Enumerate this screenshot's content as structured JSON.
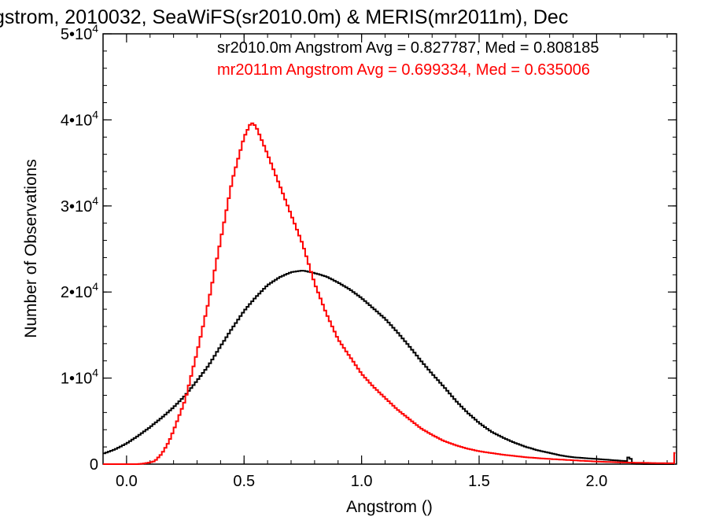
{
  "chart_data": {
    "type": "line",
    "title": "gstrom, 2010032, SeaWiFS(sr2010.0m) & MERIS(mr2011m), Dec",
    "xlabel": "Angstrom ()",
    "ylabel": "Number of Observations",
    "xlim": [
      -0.1,
      2.34
    ],
    "ylim": [
      0,
      50000
    ],
    "grid": false,
    "x_ticks": [
      {
        "value": 0.0,
        "label": "0.0"
      },
      {
        "value": 0.5,
        "label": "0.5"
      },
      {
        "value": 1.0,
        "label": "1.0"
      },
      {
        "value": 1.5,
        "label": "1.5"
      },
      {
        "value": 2.0,
        "label": "2.0"
      }
    ],
    "y_ticks": [
      {
        "value": 0,
        "label": "0",
        "exp": ""
      },
      {
        "value": 10000,
        "label": "1•10",
        "exp": "4"
      },
      {
        "value": 20000,
        "label": "2•10",
        "exp": "4"
      },
      {
        "value": 30000,
        "label": "3•10",
        "exp": "4"
      },
      {
        "value": 40000,
        "label": "4•10",
        "exp": "4"
      },
      {
        "value": 50000,
        "label": "5•10",
        "exp": "4"
      }
    ],
    "annotations": [
      {
        "text": "sr2010.0m Angstrom Avg = 0.827787, Med = 0.808185",
        "color": "#000000"
      },
      {
        "text": "mr2011m Angstrom Avg = 0.699334, Med = 0.635006",
        "color": "#ff0000"
      }
    ],
    "series": [
      {
        "color": "#000000",
        "points": [
          [
            -0.1,
            1200
          ],
          [
            -0.05,
            1700
          ],
          [
            0,
            2400
          ],
          [
            0.05,
            3300
          ],
          [
            0.1,
            4300
          ],
          [
            0.15,
            5400
          ],
          [
            0.2,
            6600
          ],
          [
            0.25,
            8000
          ],
          [
            0.3,
            9700
          ],
          [
            0.35,
            11500
          ],
          [
            0.4,
            13700
          ],
          [
            0.45,
            15800
          ],
          [
            0.5,
            17800
          ],
          [
            0.55,
            19400
          ],
          [
            0.6,
            20800
          ],
          [
            0.65,
            21700
          ],
          [
            0.7,
            22300
          ],
          [
            0.75,
            22500
          ],
          [
            0.8,
            22200
          ],
          [
            0.85,
            21800
          ],
          [
            0.9,
            21100
          ],
          [
            0.95,
            20300
          ],
          [
            1.0,
            19300
          ],
          [
            1.05,
            18100
          ],
          [
            1.1,
            16900
          ],
          [
            1.15,
            15400
          ],
          [
            1.2,
            13800
          ],
          [
            1.25,
            12100
          ],
          [
            1.3,
            10500
          ],
          [
            1.35,
            9000
          ],
          [
            1.4,
            7400
          ],
          [
            1.45,
            6000
          ],
          [
            1.5,
            4800
          ],
          [
            1.55,
            3800
          ],
          [
            1.6,
            3100
          ],
          [
            1.65,
            2500
          ],
          [
            1.7,
            2000
          ],
          [
            1.75,
            1600
          ],
          [
            1.8,
            1300
          ],
          [
            1.85,
            1000
          ],
          [
            1.9,
            800
          ],
          [
            1.95,
            700
          ],
          [
            2.0,
            600
          ],
          [
            2.05,
            500
          ],
          [
            2.1,
            400
          ],
          [
            2.13,
            350
          ],
          [
            2.14,
            1200
          ],
          [
            2.15,
            50
          ],
          [
            2.2,
            0
          ],
          [
            2.25,
            0
          ],
          [
            2.3,
            0
          ],
          [
            2.33,
            0
          ]
        ]
      },
      {
        "color": "#ff0000",
        "points": [
          [
            -0.1,
            0
          ],
          [
            0.05,
            0
          ],
          [
            0.08,
            100
          ],
          [
            0.1,
            200
          ],
          [
            0.12,
            350
          ],
          [
            0.15,
            1200
          ],
          [
            0.18,
            2600
          ],
          [
            0.2,
            3900
          ],
          [
            0.25,
            7500
          ],
          [
            0.3,
            13000
          ],
          [
            0.35,
            19000
          ],
          [
            0.4,
            26000
          ],
          [
            0.45,
            33000
          ],
          [
            0.5,
            38000
          ],
          [
            0.53,
            39700
          ],
          [
            0.55,
            39300
          ],
          [
            0.6,
            36000
          ],
          [
            0.65,
            32500
          ],
          [
            0.7,
            29000
          ],
          [
            0.75,
            25500
          ],
          [
            0.8,
            21000
          ],
          [
            0.85,
            17500
          ],
          [
            0.9,
            14500
          ],
          [
            0.95,
            12500
          ],
          [
            1.0,
            10500
          ],
          [
            1.05,
            9000
          ],
          [
            1.1,
            7700
          ],
          [
            1.15,
            6400
          ],
          [
            1.2,
            5300
          ],
          [
            1.25,
            4200
          ],
          [
            1.3,
            3400
          ],
          [
            1.35,
            2700
          ],
          [
            1.4,
            2200
          ],
          [
            1.45,
            1800
          ],
          [
            1.5,
            1500
          ],
          [
            1.6,
            1100
          ],
          [
            1.7,
            800
          ],
          [
            1.8,
            600
          ],
          [
            1.9,
            450
          ],
          [
            2.0,
            300
          ],
          [
            2.1,
            200
          ],
          [
            2.2,
            150
          ],
          [
            2.3,
            100
          ],
          [
            2.33,
            100
          ],
          [
            2.335,
            1300
          ]
        ]
      }
    ]
  }
}
